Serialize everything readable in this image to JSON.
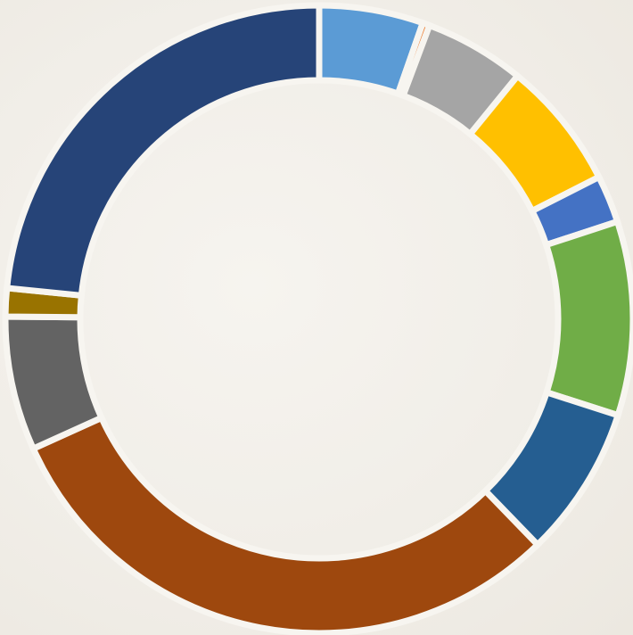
{
  "chart_data": {
    "type": "donut",
    "title": "",
    "start_angle_deg": 0,
    "direction": "clockwise",
    "slices": [
      {
        "value": 5.9,
        "color": "#5b9bd5"
      },
      {
        "value": 0.4,
        "color": "#ed7d31"
      },
      {
        "value": 5.7,
        "color": "#a5a5a5"
      },
      {
        "value": 7.3,
        "color": "#ffc000"
      },
      {
        "value": 2.7,
        "color": "#4472c4"
      },
      {
        "value": 11.0,
        "color": "#70ad47"
      },
      {
        "value": 8.6,
        "color": "#255e91"
      },
      {
        "value": 33.6,
        "color": "#9e480e"
      },
      {
        "value": 7.6,
        "color": "#636363"
      },
      {
        "value": 1.6,
        "color": "#997300"
      },
      {
        "value": 25.8,
        "color": "#264478"
      }
    ],
    "background_color": "#f2efe9",
    "legend": "none",
    "data_labels": "none"
  }
}
